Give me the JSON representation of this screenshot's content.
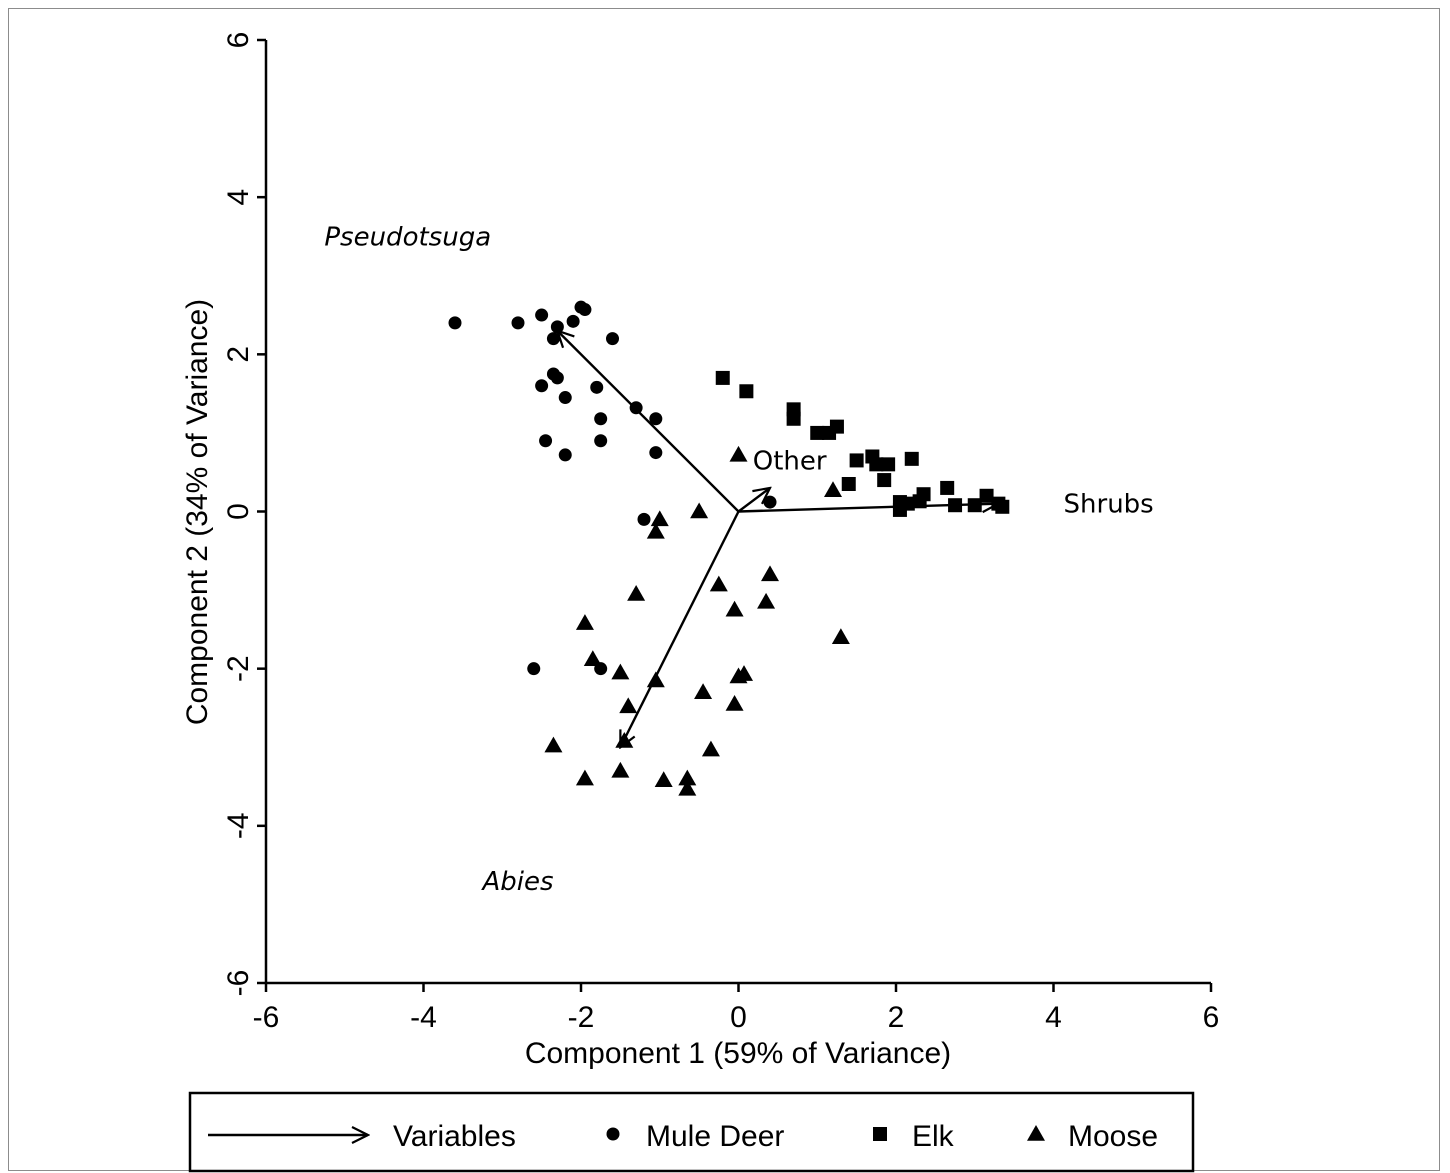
{
  "chart_data": {
    "type": "scatter",
    "title": "",
    "xlabel": "Component 1 (59% of Variance)",
    "ylabel": "Component 2 (34% of Variance)",
    "xlim": [
      -6,
      6
    ],
    "ylim": [
      -6,
      6
    ],
    "xticks": [
      "-6",
      "-4",
      "-2",
      "0",
      "2",
      "4",
      "6"
    ],
    "yticks": [
      "-6",
      "-4",
      "-2",
      "0",
      "2",
      "4",
      "6"
    ],
    "grid": false,
    "legend_position": "bottom",
    "legend": [
      {
        "label": "Variables",
        "marker": "arrow"
      },
      {
        "label": "Mule Deer",
        "marker": "circle"
      },
      {
        "label": "Elk",
        "marker": "square"
      },
      {
        "label": "Moose",
        "marker": "triangle"
      }
    ],
    "vectors": [
      {
        "label": "Pseudotsuga",
        "italic": true,
        "end": [
          -2.3,
          2.3
        ],
        "label_at": [
          -4.2,
          3.5
        ]
      },
      {
        "label": "Shrubs",
        "italic": false,
        "end": [
          3.3,
          0.1
        ],
        "label_at": [
          4.7,
          0.1
        ]
      },
      {
        "label": "Abies",
        "italic": true,
        "end": [
          -1.5,
          -3.0
        ],
        "label_at": [
          -2.8,
          -4.7
        ]
      },
      {
        "label": "Other",
        "italic": false,
        "end": [
          0.4,
          0.3
        ],
        "label_at": [
          0.65,
          0.65
        ]
      }
    ],
    "series": [
      {
        "name": "Mule Deer",
        "marker": "circle",
        "points": [
          [
            -3.6,
            2.4
          ],
          [
            -2.8,
            2.4
          ],
          [
            -2.5,
            2.5
          ],
          [
            -2.3,
            2.35
          ],
          [
            -2.1,
            2.42
          ],
          [
            -2.0,
            2.6
          ],
          [
            -1.95,
            2.57
          ],
          [
            -1.6,
            2.2
          ],
          [
            -2.35,
            2.2
          ],
          [
            -2.35,
            1.75
          ],
          [
            -2.3,
            1.7
          ],
          [
            -2.5,
            1.6
          ],
          [
            -1.8,
            1.58
          ],
          [
            -2.2,
            1.45
          ],
          [
            -1.3,
            1.32
          ],
          [
            -1.75,
            1.18
          ],
          [
            -1.05,
            1.18
          ],
          [
            -2.45,
            0.9
          ],
          [
            -1.75,
            0.9
          ],
          [
            -2.2,
            0.72
          ],
          [
            -1.05,
            0.75
          ],
          [
            0.4,
            0.12
          ],
          [
            -1.2,
            -0.1
          ],
          [
            -2.6,
            -2.0
          ],
          [
            -1.75,
            -2.0
          ]
        ]
      },
      {
        "name": "Elk",
        "marker": "square",
        "points": [
          [
            -0.2,
            1.7
          ],
          [
            0.1,
            1.53
          ],
          [
            0.7,
            1.3
          ],
          [
            0.7,
            1.18
          ],
          [
            1.0,
            1.0
          ],
          [
            1.15,
            1.0
          ],
          [
            1.25,
            1.08
          ],
          [
            1.5,
            0.65
          ],
          [
            1.7,
            0.7
          ],
          [
            1.75,
            0.6
          ],
          [
            1.9,
            0.6
          ],
          [
            1.85,
            0.4
          ],
          [
            2.2,
            0.67
          ],
          [
            1.4,
            0.35
          ],
          [
            2.05,
            0.12
          ],
          [
            2.05,
            0.02
          ],
          [
            2.15,
            0.1
          ],
          [
            2.3,
            0.13
          ],
          [
            2.35,
            0.22
          ],
          [
            2.65,
            0.3
          ],
          [
            2.75,
            0.08
          ],
          [
            3.0,
            0.08
          ],
          [
            3.15,
            0.2
          ],
          [
            3.3,
            0.1
          ],
          [
            3.35,
            0.06
          ]
        ]
      },
      {
        "name": "Moose",
        "marker": "triangle",
        "points": [
          [
            0.0,
            0.72
          ],
          [
            1.2,
            0.27
          ],
          [
            -0.5,
            0.0
          ],
          [
            -1.0,
            -0.1
          ],
          [
            -1.05,
            -0.26
          ],
          [
            0.4,
            -0.8
          ],
          [
            -0.25,
            -0.93
          ],
          [
            -1.3,
            -1.05
          ],
          [
            0.35,
            -1.15
          ],
          [
            -0.05,
            -1.25
          ],
          [
            -1.95,
            -1.42
          ],
          [
            1.3,
            -1.6
          ],
          [
            -1.85,
            -1.88
          ],
          [
            -1.5,
            -2.05
          ],
          [
            0.0,
            -2.1
          ],
          [
            0.07,
            -2.07
          ],
          [
            -1.05,
            -2.15
          ],
          [
            -0.45,
            -2.3
          ],
          [
            -1.4,
            -2.48
          ],
          [
            -0.05,
            -2.45
          ],
          [
            -1.45,
            -2.92
          ],
          [
            -2.35,
            -2.98
          ],
          [
            -0.35,
            -3.03
          ],
          [
            -1.5,
            -3.3
          ],
          [
            -1.95,
            -3.4
          ],
          [
            -0.95,
            -3.42
          ],
          [
            -0.65,
            -3.4
          ],
          [
            -0.65,
            -3.53
          ]
        ]
      }
    ]
  }
}
